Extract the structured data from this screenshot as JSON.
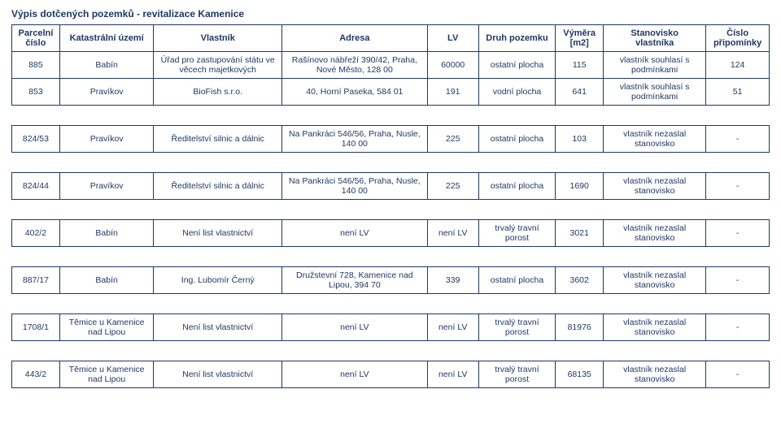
{
  "title": "Výpis dotčených pozemků -    revitalizace Kamenice",
  "colors": {
    "text": "#1f3864",
    "border": "#1f3864",
    "background": "#ffffff"
  },
  "fontsizes": {
    "title": 12,
    "header": 11,
    "cell": 10.5
  },
  "columns": [
    "Parcelní\nčíslo",
    "Katastrální území",
    "Vlastník",
    "Adresa",
    "LV",
    "Druh pozemku",
    "Výměra\n[m2]",
    "Stanovisko\nvlastníka",
    "Číslo\npřipomínky"
  ],
  "rows": [
    {
      "cells": [
        "885",
        "Babín",
        "Úřad pro zastupování státu ve věcech majetkových",
        "Rašínovo nábřeží 390/42, Praha, Nové Město, 128 00",
        "60000",
        "ostatní plocha",
        "115",
        "vlastník souhlasí s podmínkami",
        "124"
      ],
      "spacerAfter": false
    },
    {
      "cells": [
        "853",
        "Pravíkov",
        "BioFish s.r.o.",
        "40, Horní Paseka, 584 01",
        "191",
        "vodní plocha",
        "641",
        "vlastník souhlasí s podmínkami",
        "51"
      ],
      "spacerAfter": true
    },
    {
      "cells": [
        "824/53",
        "Pravíkov",
        "Ředitelství silnic a dálnic",
        "Na Pankráci 546/56, Praha, Nusle, 140 00",
        "225",
        "ostatní plocha",
        "103",
        "vlastník nezaslal stanovisko",
        "-"
      ],
      "spacerAfter": true
    },
    {
      "cells": [
        "824/44",
        "Pravíkov",
        "Ředitelství silnic a dálnic",
        "Na Pankráci 546/56, Praha, Nusle, 140 00",
        "225",
        "ostatní plocha",
        "1690",
        "vlastník nezaslal stanovisko",
        "-"
      ],
      "spacerAfter": true
    },
    {
      "cells": [
        "402/2",
        "Babín",
        "Není list vlastnictví",
        "není LV",
        "není LV",
        "trvalý travní porost",
        "3021",
        "vlastník nezaslal stanovisko",
        "-"
      ],
      "spacerAfter": true
    },
    {
      "cells": [
        "887/17",
        "Babín",
        "Ing. Lubomír Černý",
        "Družstevní 728, Kamenice nad Lipou, 394 70",
        "339",
        "ostatní plocha",
        "3602",
        "vlastník nezaslal stanovisko",
        "-"
      ],
      "spacerAfter": true
    },
    {
      "cells": [
        "1708/1",
        "Těmice u Kamenice nad Lipou",
        "Není list vlastnictví",
        "není LV",
        "není LV",
        "trvalý travní porost",
        "81976",
        "vlastník nezaslal stanovisko",
        "-"
      ],
      "spacerAfter": true
    },
    {
      "cells": [
        "443/2",
        "Těmice u Kamenice nad Lipou",
        "Není list vlastnictví",
        "není LV",
        "není LV",
        "trvalý travní porost",
        "68135",
        "vlastník nezaslal stanovisko",
        "-"
      ],
      "spacerAfter": false
    }
  ]
}
